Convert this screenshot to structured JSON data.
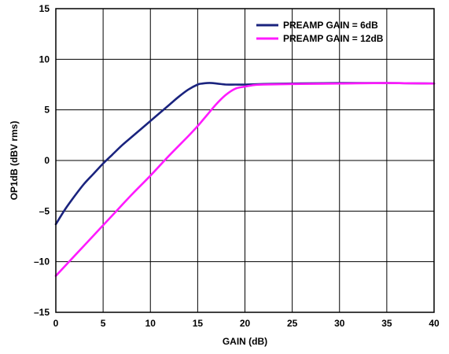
{
  "chart_data": {
    "type": "line",
    "title": "",
    "xlabel": "GAIN (dB)",
    "ylabel": "OP1dB (dBV rms)",
    "xlim": [
      0,
      40
    ],
    "ylim": [
      -15,
      15
    ],
    "xticks": [
      0,
      5,
      10,
      15,
      20,
      25,
      30,
      35,
      40
    ],
    "yticks": [
      15,
      10,
      5,
      0,
      -5,
      -10,
      -15
    ],
    "grid": true,
    "legend_position": "top-right",
    "series": [
      {
        "name": "PREAMP GAIN = 6dB",
        "color": "#1a237e",
        "x": [
          0,
          1,
          2,
          3,
          4,
          5,
          6,
          7,
          8,
          9,
          10,
          11,
          12,
          13,
          14,
          15,
          15.5,
          16,
          16.5,
          17,
          17.5,
          18,
          19,
          20,
          22,
          25,
          30,
          35,
          40
        ],
        "y": [
          -6.3,
          -4.8,
          -3.5,
          -2.3,
          -1.3,
          -0.3,
          0.6,
          1.5,
          2.3,
          3.1,
          3.9,
          4.7,
          5.5,
          6.3,
          7.0,
          7.5,
          7.6,
          7.65,
          7.65,
          7.6,
          7.55,
          7.5,
          7.5,
          7.5,
          7.55,
          7.6,
          7.65,
          7.65,
          7.6
        ]
      },
      {
        "name": "PREAMP GAIN = 12dB",
        "color": "#ff1aff",
        "x": [
          0,
          2,
          4,
          6,
          8,
          10,
          12,
          14,
          15,
          16,
          17,
          18,
          19,
          20,
          21,
          22,
          25,
          30,
          35,
          40
        ],
        "y": [
          -11.4,
          -9.4,
          -7.4,
          -5.4,
          -3.4,
          -1.5,
          0.5,
          2.4,
          3.4,
          4.5,
          5.6,
          6.5,
          7.1,
          7.3,
          7.45,
          7.5,
          7.55,
          7.6,
          7.65,
          7.6
        ]
      }
    ]
  }
}
